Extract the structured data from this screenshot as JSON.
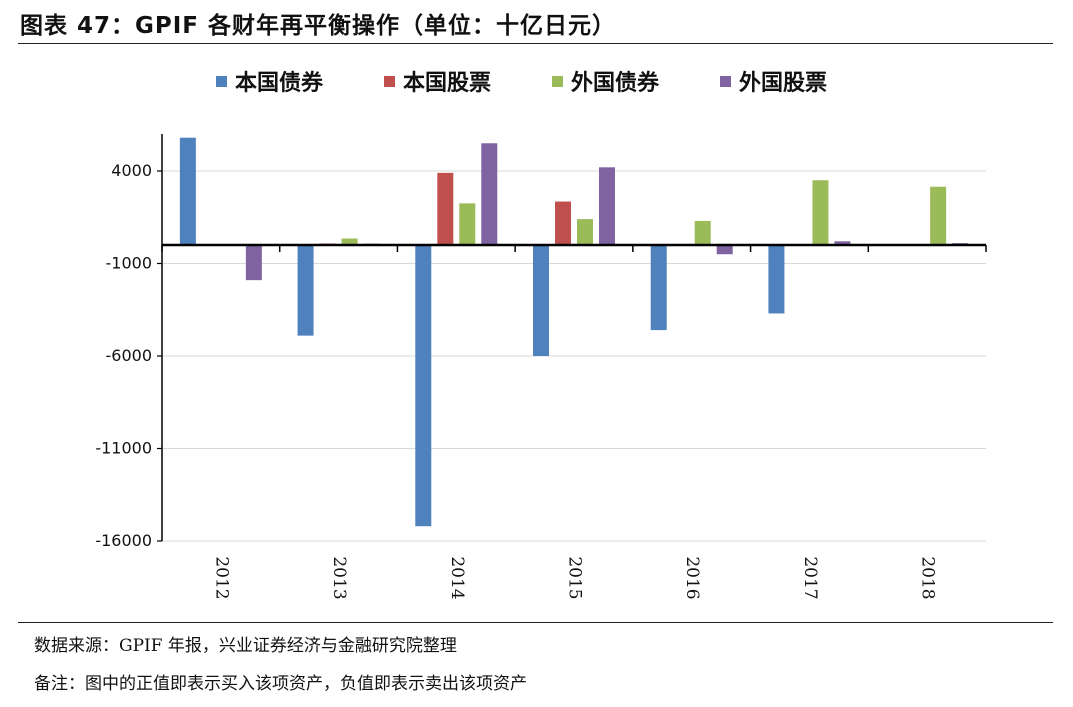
{
  "header": {
    "title": "图表 47：GPIF 各财年再平衡操作（单位：十亿日元）"
  },
  "footer": {
    "source": "数据来源：GPIF 年报，兴业证券经济与金融研究院整理",
    "note": "备注：图中的正值即表示买入该项资产，负值即表示卖出该项资产"
  },
  "chart_data": {
    "type": "bar",
    "categories": [
      "2012",
      "2013",
      "2014",
      "2015",
      "2016",
      "2017",
      "2018"
    ],
    "series": [
      {
        "name": "本国债券",
        "color": "#4F81BD",
        "values": [
          5800,
          -4900,
          -15200,
          -6000,
          -4600,
          -3700,
          0
        ]
      },
      {
        "name": "本国股票",
        "color": "#C0504D",
        "values": [
          0,
          80,
          3900,
          2350,
          0,
          0,
          0
        ]
      },
      {
        "name": "外国债券",
        "color": "#9BBB59",
        "values": [
          0,
          350,
          2250,
          1400,
          1300,
          3500,
          3150
        ]
      },
      {
        "name": "外国股票",
        "color": "#8064A2",
        "values": [
          -1900,
          70,
          5500,
          4200,
          -500,
          200,
          100
        ]
      }
    ],
    "yticks": [
      4000,
      -1000,
      -6000,
      -11000,
      -16000
    ],
    "ylim": [
      -16000,
      6000
    ],
    "legend_position": "top",
    "grid": true
  }
}
